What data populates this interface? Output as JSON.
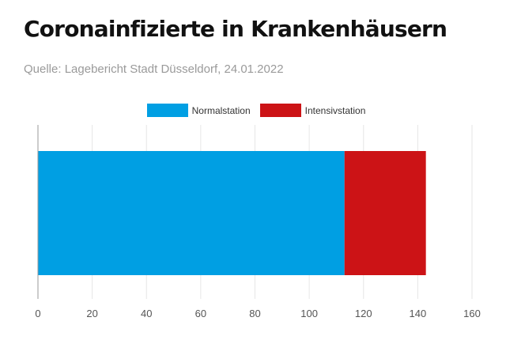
{
  "header": {
    "title": "Coronainfizierte in Krankenhäusern",
    "source": "Quelle: Lagebericht Stadt Düsseldorf, 24.01.2022"
  },
  "colors": {
    "normalstation": "#009fe3",
    "intensivstation": "#cc1316",
    "grid": "#e6e6e6",
    "axis": "#999999"
  },
  "chart_data": {
    "type": "bar",
    "orientation": "horizontal",
    "stacked": true,
    "categories": [
      ""
    ],
    "series": [
      {
        "name": "Normalstation",
        "values": [
          113
        ],
        "color": "#009fe3"
      },
      {
        "name": "Intensivstation",
        "values": [
          30
        ],
        "color": "#cc1316"
      }
    ],
    "xlim": [
      0,
      160
    ],
    "xticks": [
      0,
      20,
      40,
      60,
      80,
      100,
      120,
      140,
      160
    ],
    "grid": true,
    "legend": "top-center",
    "title": "Coronainfizierte in Krankenhäusern",
    "xlabel": "",
    "ylabel": ""
  }
}
